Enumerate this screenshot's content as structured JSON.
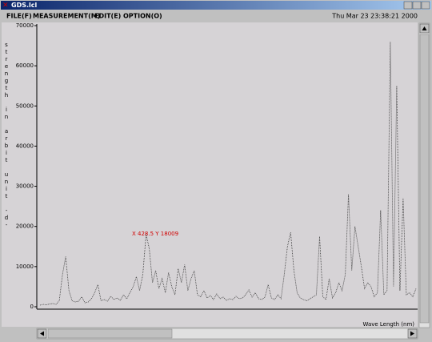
{
  "window": {
    "title": "GDS.lcl"
  },
  "menu": [
    "FILE(F)",
    "MEASUREMENT(M)",
    "EDIT(E)",
    "OPTION(O)"
  ],
  "clock": "Thu Mar 23 23:38:21 2000",
  "chart_data": {
    "type": "line",
    "y_label": "strength in arbit unit -d-",
    "x_label": "Wave Length (nm)",
    "annotation": "X 428.5 Y 18009",
    "color": "#3a3a3a",
    "ylim": [
      0,
      70000
    ],
    "yticks": [
      0,
      10000,
      20000,
      30000,
      40000,
      50000,
      60000,
      70000
    ],
    "values": [
      400,
      600,
      500,
      700,
      800,
      600,
      1500,
      8000,
      12500,
      4000,
      1500,
      1200,
      1400,
      2500,
      1000,
      1200,
      2000,
      3500,
      5500,
      1500,
      1800,
      1400,
      2600,
      1800,
      2200,
      1600,
      3000,
      2000,
      3500,
      5000,
      7500,
      4000,
      8000,
      18000,
      14500,
      6000,
      9000,
      4500,
      7000,
      3500,
      8500,
      5000,
      3000,
      9500,
      6000,
      10500,
      4000,
      7000,
      9000,
      3000,
      2500,
      4000,
      2200,
      2800,
      1800,
      3200,
      2000,
      2400,
      1600,
      2000,
      1800,
      2600,
      2000,
      2200,
      3000,
      4200,
      2400,
      3500,
      2000,
      1800,
      2400,
      5500,
      2200,
      1800,
      3000,
      2000,
      8000,
      15000,
      18500,
      9000,
      3500,
      2200,
      1800,
      1500,
      2000,
      2500,
      3000,
      17500,
      2500,
      1800,
      7000,
      2200,
      3500,
      6000,
      4000,
      8000,
      28000,
      9000,
      20000,
      15000,
      10000,
      4500,
      6000,
      5000,
      2500,
      3500,
      24000,
      3000,
      4000,
      66000,
      5000,
      55000,
      4000,
      27000,
      3000,
      3500,
      2500,
      4500
    ]
  }
}
